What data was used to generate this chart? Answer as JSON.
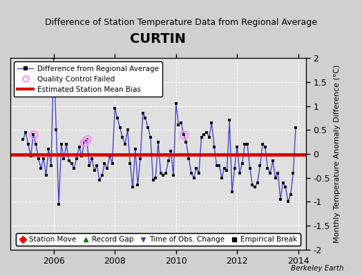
{
  "title": "CURTIN",
  "subtitle": "Difference of Station Temperature Data from Regional Average",
  "ylabel": "Monthly Temperature Anomaly Difference (°C)",
  "credit": "Berkeley Earth",
  "xlim": [
    2004.583,
    2014.25
  ],
  "ylim": [
    -2,
    2
  ],
  "yticks": [
    -2,
    -1.5,
    -1,
    -0.5,
    0,
    0.5,
    1,
    1.5,
    2
  ],
  "xticks": [
    2006,
    2008,
    2010,
    2012,
    2014
  ],
  "bias": -0.02,
  "line_color": "#4444cc",
  "marker_color": "#111111",
  "bias_color": "#dd0000",
  "qc_color": "#ff88ff",
  "bg_color": "#e0e0e0",
  "fig_color": "#d0d0d0",
  "x": [
    2005.0,
    2005.083,
    2005.167,
    2005.25,
    2005.333,
    2005.417,
    2005.5,
    2005.583,
    2005.667,
    2005.75,
    2005.833,
    2005.917,
    2006.0,
    2006.083,
    2006.167,
    2006.25,
    2006.333,
    2006.417,
    2006.5,
    2006.583,
    2006.667,
    2006.75,
    2006.833,
    2006.917,
    2007.0,
    2007.083,
    2007.167,
    2007.25,
    2007.333,
    2007.417,
    2007.5,
    2007.583,
    2007.667,
    2007.75,
    2007.833,
    2007.917,
    2008.0,
    2008.083,
    2008.167,
    2008.25,
    2008.333,
    2008.417,
    2008.5,
    2008.583,
    2008.667,
    2008.75,
    2008.833,
    2008.917,
    2009.0,
    2009.083,
    2009.167,
    2009.25,
    2009.333,
    2009.417,
    2009.5,
    2009.583,
    2009.667,
    2009.75,
    2009.833,
    2009.917,
    2010.0,
    2010.083,
    2010.167,
    2010.25,
    2010.333,
    2010.417,
    2010.5,
    2010.583,
    2010.667,
    2010.75,
    2010.833,
    2010.917,
    2011.0,
    2011.083,
    2011.167,
    2011.25,
    2011.333,
    2011.417,
    2011.5,
    2011.583,
    2011.667,
    2011.75,
    2011.833,
    2011.917,
    2012.0,
    2012.083,
    2012.167,
    2012.25,
    2012.333,
    2012.417,
    2012.5,
    2012.583,
    2012.667,
    2012.75,
    2012.833,
    2012.917,
    2013.0,
    2013.083,
    2013.167,
    2013.25,
    2013.333,
    2013.417,
    2013.5,
    2013.583,
    2013.667,
    2013.75,
    2013.833,
    2013.917
  ],
  "y": [
    0.3,
    0.45,
    0.2,
    -0.05,
    0.4,
    0.2,
    -0.1,
    -0.3,
    -0.1,
    -0.45,
    0.1,
    -0.25,
    2.0,
    0.5,
    -1.05,
    0.2,
    -0.1,
    0.2,
    -0.15,
    -0.2,
    -0.3,
    -0.1,
    0.15,
    -0.05,
    0.25,
    0.3,
    -0.25,
    -0.1,
    -0.35,
    -0.25,
    -0.55,
    -0.45,
    -0.2,
    -0.3,
    -0.05,
    -0.2,
    0.95,
    0.75,
    0.55,
    0.35,
    0.2,
    0.5,
    -0.2,
    -0.7,
    0.1,
    -0.65,
    -0.1,
    0.85,
    0.75,
    0.55,
    0.35,
    -0.55,
    -0.5,
    0.25,
    -0.4,
    -0.45,
    -0.4,
    -0.15,
    0.05,
    -0.45,
    1.05,
    0.6,
    0.65,
    0.4,
    0.25,
    -0.1,
    -0.4,
    -0.5,
    -0.3,
    -0.4,
    0.35,
    0.4,
    0.45,
    0.35,
    0.65,
    0.15,
    -0.25,
    -0.25,
    -0.5,
    -0.3,
    -0.35,
    0.7,
    -0.8,
    -0.3,
    0.15,
    -0.4,
    -0.2,
    0.2,
    0.2,
    -0.3,
    -0.65,
    -0.7,
    -0.6,
    -0.25,
    0.2,
    0.15,
    -0.3,
    -0.4,
    -0.15,
    -0.5,
    -0.4,
    -0.95,
    -0.6,
    -0.7,
    -1.0,
    -0.85,
    -0.4,
    0.55
  ],
  "qc_indices": [
    4,
    24,
    25,
    63
  ],
  "title_fontsize": 14,
  "subtitle_fontsize": 9,
  "tick_fontsize": 9,
  "ylabel_fontsize": 8
}
